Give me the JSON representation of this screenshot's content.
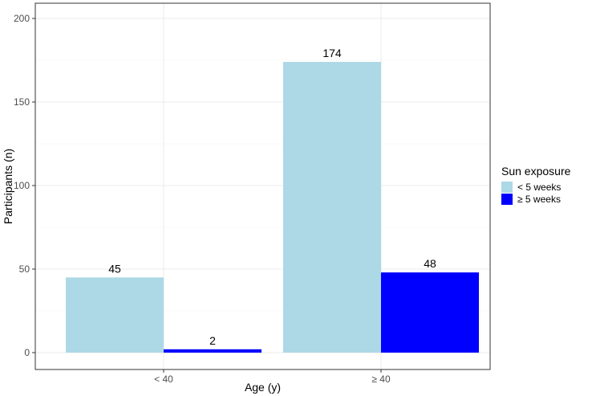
{
  "chart_data": {
    "type": "bar",
    "categories": [
      "< 40",
      "≥ 40"
    ],
    "series": [
      {
        "name": "< 5 weeks",
        "values": [
          45,
          174
        ],
        "color": "#add8e6"
      },
      {
        "name": "≥ 5 weeks",
        "values": [
          2,
          48
        ],
        "color": "#0000ff"
      }
    ],
    "title": "",
    "xlabel": "Age (y)",
    "ylabel": "Participants (n)",
    "ylim": [
      0,
      200
    ],
    "yticks": [
      0,
      50,
      100,
      150,
      200
    ],
    "grid": true,
    "legend": {
      "title": "Sun exposure",
      "position": "right"
    }
  }
}
